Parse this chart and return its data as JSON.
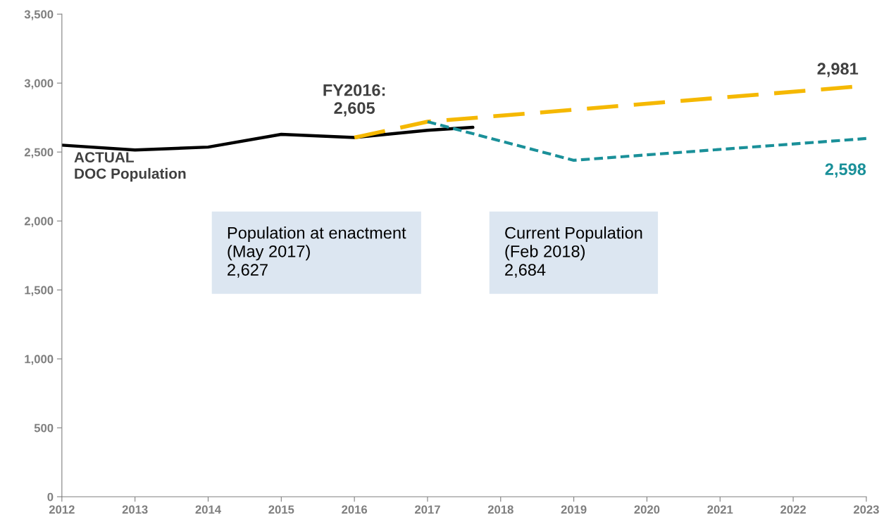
{
  "chart_data": {
    "type": "line",
    "series": [
      {
        "color": "#000000",
        "line_style": "solid",
        "x": [
          2012,
          2013,
          2014,
          2015,
          2016,
          2017,
          2017.62
        ],
        "values": [
          2550,
          2515,
          2536,
          2628,
          2605,
          2658,
          2679
        ],
        "value_labels": [
          null,
          null,
          null,
          null,
          "FY2016:\n2,605",
          null,
          null
        ]
      },
      {
        "color": "#f5b800",
        "line_style": "dashed",
        "x": [
          2016,
          2017,
          2023
        ],
        "values": [
          2605,
          2720,
          2981
        ],
        "value_labels": [
          null,
          null,
          "2,981"
        ]
      },
      {
        "color": "#1a9099",
        "line_style": "dotted",
        "x": [
          2017,
          2019,
          2023
        ],
        "values": [
          2720,
          2440,
          2598
        ],
        "value_labels": [
          null,
          null,
          "2,598"
        ]
      }
    ],
    "xlim": [
      2012,
      2023
    ],
    "xticks": [
      2012,
      2013,
      2014,
      2015,
      2016,
      2017,
      2018,
      2019,
      2020,
      2021,
      2022,
      2023
    ],
    "ylim": [
      0,
      3500
    ],
    "yticks": [
      0,
      500,
      {
        "value": 1000,
        "label": "1,000"
      },
      {
        "value": 1500,
        "label": "1,500"
      },
      {
        "value": 2000,
        "label": "2,000"
      },
      {
        "value": 2500,
        "label": "2,500"
      },
      {
        "value": 3000,
        "label": "3,000"
      },
      {
        "value": 3500,
        "label": "3,500"
      }
    ],
    "grid": false,
    "legend": false,
    "annotations": [
      "ACTUAL\nDOC Population",
      "Population at enactment\n(May 2017)\n2,627",
      "Current Population\n(Feb 2018)\n2,684"
    ]
  }
}
